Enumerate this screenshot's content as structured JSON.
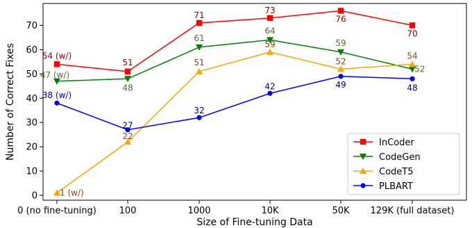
{
  "chart_data": {
    "type": "line",
    "title": "",
    "xlabel": "Size of Fine-tuning Data",
    "ylabel": "Number of Correct Fixes",
    "categories": [
      "0 (no fine-tuning)",
      "100",
      "1000",
      "10K",
      "50K",
      "129K (full dataset)"
    ],
    "yticks": [
      0,
      10,
      20,
      30,
      40,
      50,
      60,
      70
    ],
    "ylim": [
      -2,
      79
    ],
    "grid": false,
    "legend_position": "bottom-right",
    "series": [
      {
        "name": "InCoder",
        "color": "#ff0000",
        "label_color": "#8b0000",
        "marker": "square",
        "values": [
          54,
          51,
          71,
          73,
          76,
          70
        ],
        "labels": [
          "54 (w/)",
          "51",
          "71",
          "73",
          "76",
          "70"
        ]
      },
      {
        "name": "CodeGen",
        "color": "#008000",
        "label_color": "#556b2f",
        "marker": "triangle-down",
        "values": [
          47,
          48,
          61,
          64,
          59,
          52
        ],
        "labels": [
          "47 (w/)",
          "48",
          "61",
          "64",
          "59",
          "52"
        ]
      },
      {
        "name": "CodeT5",
        "color": "#ffa500",
        "label_color": "#8b4513",
        "marker": "triangle-up",
        "values": [
          1,
          22,
          51,
          59,
          52,
          54
        ],
        "labels": [
          "1 (w/)",
          "22",
          "51",
          "59",
          "52",
          "54"
        ]
      },
      {
        "name": "PLBART",
        "color": "#0000ff",
        "label_color": "#00008b",
        "marker": "circle",
        "values": [
          38,
          27,
          32,
          42,
          49,
          48
        ],
        "labels": [
          "38 (w/)",
          "27",
          "32",
          "42",
          "49",
          "48"
        ]
      }
    ]
  }
}
